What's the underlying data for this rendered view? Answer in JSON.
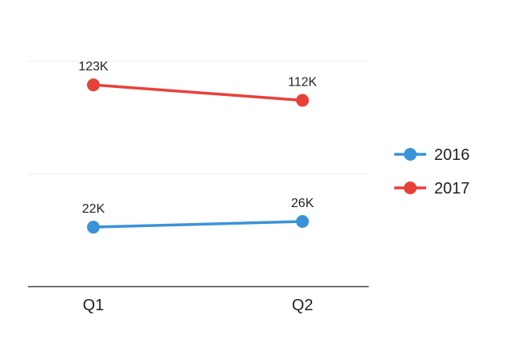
{
  "chart_data": {
    "type": "line",
    "categories": [
      "Q1",
      "Q2"
    ],
    "series": [
      {
        "name": "2016",
        "values": [
          22000,
          26000
        ],
        "labels": [
          "22K",
          "26K"
        ],
        "color": "#3a93d8"
      },
      {
        "name": "2017",
        "values": [
          123000,
          112000
        ],
        "labels": [
          "123K",
          "112K"
        ],
        "color": "#e8413a"
      }
    ],
    "ylim": [
      -20000,
      160000
    ],
    "grid": true,
    "legend": "right",
    "gridline_color": "#ececec",
    "axis_color": "#444444"
  }
}
